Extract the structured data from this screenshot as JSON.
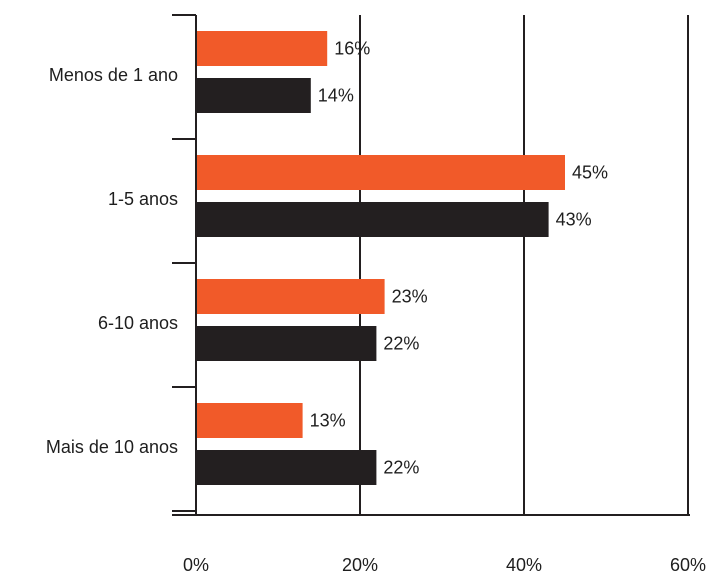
{
  "chart_data": {
    "type": "bar",
    "orientation": "horizontal",
    "categories": [
      "Menos de 1 ano",
      "1-5 anos",
      "6-10 anos",
      "Mais de 10 anos"
    ],
    "series": [
      {
        "values": [
          16,
          45,
          23,
          13
        ],
        "labels": [
          "16%",
          "45%",
          "23%",
          "13%"
        ]
      },
      {
        "values": [
          14,
          43,
          22,
          22
        ],
        "labels": [
          "14%",
          "43%",
          "22%",
          "22%"
        ]
      }
    ],
    "xlim": [
      0,
      60
    ],
    "xticks": [
      0,
      20,
      40,
      60
    ],
    "xtick_labels": [
      "0%",
      "20%",
      "40%",
      "60%"
    ],
    "grid": "vertical",
    "colors": [
      "#f15a29",
      "#231f20"
    ]
  }
}
